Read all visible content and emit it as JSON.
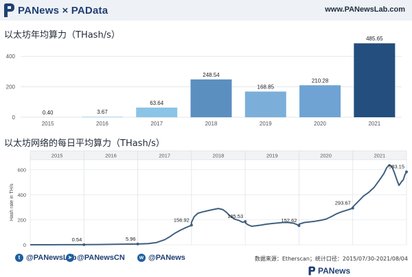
{
  "header": {
    "logo_text": "PANews × PAData",
    "site_url": "www.PANewsLab.com",
    "logo_color": "#1f3f73"
  },
  "chart_data": [
    {
      "type": "bar",
      "title": "以太坊年均算力（THash/s）",
      "categories": [
        "2015",
        "2016",
        "2017",
        "2018",
        "2019",
        "2020",
        "2021"
      ],
      "values": [
        0.4,
        3.67,
        63.64,
        248.54,
        168.85,
        210.28,
        485.65
      ],
      "value_labels": [
        "0.40",
        "3.67",
        "63.64",
        "248.54",
        "168.85",
        "210.28",
        "485.65"
      ],
      "ylim": [
        0,
        500
      ],
      "yticks": [
        0,
        200,
        400
      ],
      "grid": true,
      "bar_colors": [
        "#a9d3ec",
        "#a9d3ec",
        "#8cc4e6",
        "#5b8fc0",
        "#7bafd9",
        "#6ea3d4",
        "#234e7d"
      ]
    },
    {
      "type": "line",
      "title": "以太坊网络的每日平均算力（THash/s）",
      "ylabel": "Hash rate in TH/s",
      "panels": [
        "2015",
        "2016",
        "2017",
        "2018",
        "2019",
        "2020",
        "2021"
      ],
      "ylim": [
        0,
        680
      ],
      "yticks": [
        0,
        200,
        400,
        600
      ],
      "line_color": "#3f5f7f",
      "annotations": [
        {
          "panel": "2015",
          "label": "0.54",
          "value": 0.54
        },
        {
          "panel": "2016",
          "label": "5.96",
          "value": 5.96
        },
        {
          "panel": "2017",
          "label": "156.92",
          "value": 156.92
        },
        {
          "panel": "2018",
          "label": "185.53",
          "value": 185.53
        },
        {
          "panel": "2019",
          "label": "152.62",
          "value": 152.62
        },
        {
          "panel": "2020",
          "label": "293.67",
          "value": 293.67
        },
        {
          "panel": "2021",
          "label": "583.15",
          "value": 583.15
        }
      ],
      "series": [
        {
          "values": [
            [
              0,
              0.05
            ],
            [
              0.3,
              0.2
            ],
            [
              0.6,
              0.4
            ],
            [
              1.0,
              0.54
            ],
            [
              1.05,
              1
            ],
            [
              1.3,
              2
            ],
            [
              1.6,
              4
            ],
            [
              2.0,
              5.96
            ],
            [
              2.05,
              7
            ],
            [
              2.2,
              10
            ],
            [
              2.35,
              18
            ],
            [
              2.5,
              40
            ],
            [
              2.6,
              65
            ],
            [
              2.7,
              95
            ],
            [
              2.8,
              118
            ],
            [
              2.9,
              138
            ],
            [
              2.97,
              150
            ],
            [
              3.0,
              156.92
            ],
            [
              3.0,
              180
            ],
            [
              3.05,
              225
            ],
            [
              3.12,
              252
            ],
            [
              3.2,
              262
            ],
            [
              3.3,
              272
            ],
            [
              3.4,
              282
            ],
            [
              3.5,
              290
            ],
            [
              3.58,
              282
            ],
            [
              3.65,
              260
            ],
            [
              3.72,
              230
            ],
            [
              3.8,
              205
            ],
            [
              3.88,
              195
            ],
            [
              3.95,
              180
            ],
            [
              4.0,
              185.53
            ],
            [
              4.0,
              176
            ],
            [
              4.05,
              160
            ],
            [
              4.12,
              148
            ],
            [
              4.2,
              152
            ],
            [
              4.3,
              158
            ],
            [
              4.4,
              165
            ],
            [
              4.5,
              170
            ],
            [
              4.6,
              174
            ],
            [
              4.7,
              178
            ],
            [
              4.8,
              178
            ],
            [
              4.9,
              172
            ],
            [
              4.97,
              160
            ],
            [
              5.0,
              152.62
            ],
            [
              5.0,
              165
            ],
            [
              5.1,
              178
            ],
            [
              5.2,
              183
            ],
            [
              5.3,
              188
            ],
            [
              5.4,
              195
            ],
            [
              5.5,
              205
            ],
            [
              5.6,
              225
            ],
            [
              5.7,
              248
            ],
            [
              5.8,
              265
            ],
            [
              5.9,
              278
            ],
            [
              5.97,
              288
            ],
            [
              6.0,
              293.67
            ],
            [
              6.0,
              302
            ],
            [
              6.1,
              345
            ],
            [
              6.2,
              390
            ],
            [
              6.3,
              420
            ],
            [
              6.4,
              460
            ],
            [
              6.5,
              520
            ],
            [
              6.58,
              570
            ],
            [
              6.63,
              615
            ],
            [
              6.68,
              640
            ],
            [
              6.73,
              625
            ],
            [
              6.78,
              570
            ],
            [
              6.82,
              520
            ],
            [
              6.86,
              475
            ],
            [
              6.9,
              500
            ],
            [
              6.94,
              520
            ],
            [
              6.97,
              560
            ],
            [
              7.0,
              583.15
            ]
          ]
        }
      ]
    }
  ],
  "footer": {
    "twitter": "@PANewsLab",
    "telegram": "@PANewsCN",
    "weibo": "@PANews",
    "source": "数据来源：Etherscan；统计口径：2015/07/30-2021/08/04",
    "logo_text": "PANews"
  }
}
